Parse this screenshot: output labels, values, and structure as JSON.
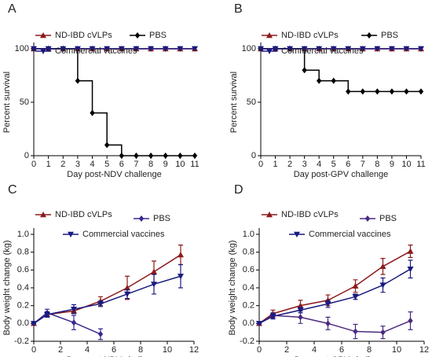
{
  "chart_data": [
    {
      "type": "line",
      "panel": "A",
      "step": true,
      "ylabel": "Percent survival",
      "xlabel": "Day post-NDV challenge",
      "x": [
        0,
        1,
        2,
        3,
        4,
        5,
        6,
        7,
        8,
        9,
        10,
        11
      ],
      "series": [
        {
          "name": "ND-IBD cVLPs",
          "color": "#8b1a1a",
          "marker": "triangle-up",
          "values": [
            100,
            100,
            100,
            100,
            100,
            100,
            100,
            100,
            100,
            100,
            100,
            100
          ]
        },
        {
          "name": "PBS",
          "color": "#000000",
          "marker": "diamond",
          "values": [
            100,
            100,
            100,
            70,
            40,
            10,
            0,
            0,
            0,
            0,
            0,
            0
          ]
        },
        {
          "name": "Commercial vaccines",
          "color": "#1a1a80",
          "marker": "triangle-down",
          "values": [
            100,
            100,
            100,
            100,
            100,
            100,
            100,
            100,
            100,
            100,
            100,
            100
          ]
        }
      ],
      "xlim": [
        0,
        11
      ],
      "xticks": [
        0,
        1,
        2,
        3,
        4,
        5,
        6,
        7,
        8,
        9,
        10,
        11
      ],
      "ylim": [
        0,
        100
      ],
      "yticks": [
        0,
        50,
        100
      ]
    },
    {
      "type": "line",
      "panel": "B",
      "step": true,
      "ylabel": "Percent survival",
      "xlabel": "Day post-GPV challenge",
      "x": [
        0,
        1,
        2,
        3,
        4,
        5,
        6,
        7,
        8,
        9,
        10,
        11
      ],
      "series": [
        {
          "name": "ND-IBD cVLPs",
          "color": "#8b1a1a",
          "marker": "triangle-up",
          "values": [
            100,
            100,
            100,
            100,
            100,
            100,
            100,
            100,
            100,
            100,
            100,
            100
          ]
        },
        {
          "name": "PBS",
          "color": "#000000",
          "marker": "diamond",
          "values": [
            100,
            100,
            100,
            80,
            70,
            70,
            60,
            60,
            60,
            60,
            60,
            60
          ]
        },
        {
          "name": "Commercial vaccines",
          "color": "#1a1a80",
          "marker": "triangle-down",
          "values": [
            100,
            100,
            100,
            100,
            100,
            100,
            100,
            100,
            100,
            100,
            100,
            100
          ]
        }
      ],
      "xlim": [
        0,
        11
      ],
      "xticks": [
        0,
        1,
        2,
        3,
        4,
        5,
        6,
        7,
        8,
        9,
        10,
        11
      ],
      "ylim": [
        0,
        100
      ],
      "yticks": [
        0,
        50,
        100
      ]
    },
    {
      "type": "line",
      "panel": "C",
      "step": false,
      "ylabel": "Body weight change (kg)",
      "xlabel": "Day post-NDV challenge",
      "x": [
        0,
        1,
        3,
        5,
        7,
        9,
        11
      ],
      "series": [
        {
          "name": "ND-IBD cVLPs",
          "color": "#8b1a1a",
          "marker": "triangle-up",
          "values": [
            0,
            0.1,
            0.14,
            0.25,
            0.4,
            0.58,
            0.77
          ],
          "errors": [
            0,
            0.02,
            0.03,
            0.05,
            0.13,
            0.12,
            0.11
          ]
        },
        {
          "name": "PBS",
          "color": "#3a2a90",
          "marker": "diamond",
          "values": [
            0,
            0.12,
            0.01,
            -0.12,
            null,
            null,
            null
          ],
          "errors": [
            0,
            0.04,
            0.08,
            0.06,
            null,
            null,
            null
          ]
        },
        {
          "name": "Commercial vaccines",
          "color": "#1a1a80",
          "marker": "triangle-down",
          "values": [
            0,
            0.1,
            0.16,
            0.22,
            0.33,
            0.44,
            0.53
          ],
          "errors": [
            0,
            0.03,
            0.05,
            0.03,
            0.05,
            0.11,
            0.13
          ]
        }
      ],
      "xlim": [
        0,
        12
      ],
      "xticks": [
        0,
        2,
        4,
        6,
        8,
        10,
        12
      ],
      "ylim": [
        -0.2,
        1.0
      ],
      "yticks": [
        -0.2,
        {
          "value": 0,
          "label": "0.0"
        },
        0.2,
        0.4,
        0.6,
        0.8,
        {
          "value": 1,
          "label": "1.0"
        }
      ]
    },
    {
      "type": "line",
      "panel": "D",
      "step": false,
      "ylabel": "Body weight change (kg)",
      "xlabel": "Day post-GPV challenge",
      "x": [
        0,
        1,
        3,
        5,
        7,
        9,
        11
      ],
      "series": [
        {
          "name": "ND-IBD cVLPs",
          "color": "#8b1a1a",
          "marker": "triangle-up",
          "values": [
            0,
            0.11,
            0.2,
            0.26,
            0.42,
            0.64,
            0.81
          ],
          "errors": [
            0,
            0.04,
            0.06,
            0.06,
            0.07,
            0.09,
            0.07
          ]
        },
        {
          "name": "PBS",
          "color": "#4b2a80",
          "marker": "diamond",
          "values": [
            0,
            0.09,
            0.07,
            0.0,
            -0.09,
            -0.1,
            0.03
          ],
          "errors": [
            0,
            0.03,
            0.07,
            0.07,
            0.08,
            0.07,
            0.1
          ]
        },
        {
          "name": "Commercial vaccines",
          "color": "#1a1a80",
          "marker": "triangle-down",
          "values": [
            0,
            0.08,
            0.15,
            0.22,
            0.3,
            0.43,
            0.61
          ],
          "errors": [
            0,
            0.03,
            0.03,
            0.04,
            0.03,
            0.08,
            0.1
          ]
        }
      ],
      "xlim": [
        0,
        12
      ],
      "xticks": [
        0,
        2,
        4,
        6,
        8,
        10,
        12
      ],
      "ylim": [
        -0.2,
        1.0
      ],
      "yticks": [
        -0.2,
        {
          "value": 0,
          "label": "0.0"
        },
        0.2,
        0.4,
        0.6,
        0.8,
        {
          "value": 1,
          "label": "1.0"
        }
      ]
    }
  ]
}
